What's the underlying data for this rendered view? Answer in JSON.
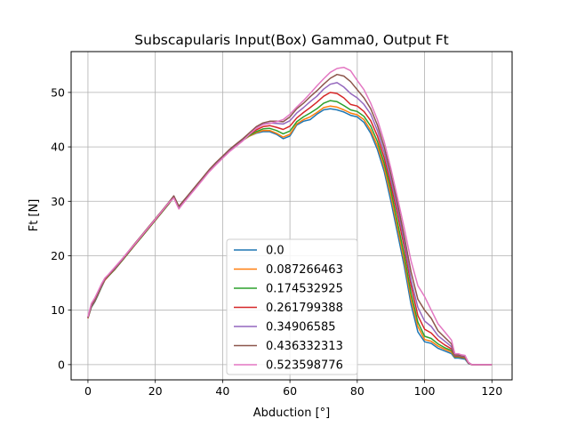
{
  "chart_data": {
    "type": "line",
    "title": "Subscapularis Input(Box) Gamma0, Output Ft",
    "xlabel": "Abduction [°]",
    "ylabel": "Ft [N]",
    "xlim": [
      -5,
      126
    ],
    "ylim": [
      -2.8,
      57.5
    ],
    "xticks": [
      0,
      20,
      40,
      60,
      80,
      100,
      120
    ],
    "yticks": [
      0,
      10,
      20,
      30,
      40,
      50
    ],
    "grid": true,
    "legend_position": "lower-center",
    "x": [
      0,
      1,
      2,
      3,
      4,
      5,
      6,
      8,
      10,
      12,
      14,
      16,
      18,
      20,
      22,
      24,
      25.5,
      27,
      28,
      30,
      32,
      34,
      36,
      38,
      40,
      42,
      44,
      46,
      48,
      50,
      52,
      54,
      56,
      58,
      60,
      62,
      64,
      66,
      68,
      70,
      72,
      74,
      76,
      78,
      80,
      82,
      84,
      86,
      88,
      90,
      92,
      94,
      96,
      98,
      100,
      102,
      104,
      106,
      108,
      109,
      110,
      111,
      112,
      113,
      114,
      116,
      118,
      120
    ],
    "series": [
      {
        "name": "0.0",
        "color": "#1f77b4",
        "values": [
          8.5,
          10.5,
          11.5,
          12.8,
          14.2,
          15.5,
          16.2,
          17.5,
          19.0,
          20.5,
          22.0,
          23.5,
          25.0,
          26.5,
          28.0,
          29.5,
          30.8,
          28.9,
          29.6,
          31.0,
          32.5,
          34.0,
          35.5,
          36.8,
          38.0,
          39.2,
          40.2,
          41.2,
          42.0,
          42.5,
          42.8,
          42.8,
          42.3,
          41.5,
          42.0,
          44.0,
          44.7,
          45.0,
          46.0,
          46.8,
          47.0,
          46.8,
          46.4,
          45.8,
          45.5,
          44.5,
          42.5,
          39.5,
          35.5,
          30.0,
          24.0,
          18.0,
          11.0,
          6.0,
          4.2,
          3.9,
          3.0,
          2.5,
          2.0,
          1.2,
          1.2,
          1.1,
          1.0,
          0.2,
          0.0,
          0.0,
          0.0,
          0.0
        ]
      },
      {
        "name": "0.087266463",
        "color": "#ff7f0e",
        "values": [
          8.5,
          10.6,
          11.6,
          12.9,
          14.3,
          15.5,
          16.2,
          17.5,
          19.0,
          20.5,
          22.0,
          23.5,
          25.0,
          26.5,
          28.0,
          29.5,
          30.8,
          28.9,
          29.6,
          31.0,
          32.5,
          34.0,
          35.5,
          36.8,
          38.0,
          39.2,
          40.2,
          41.2,
          42.0,
          42.6,
          43.0,
          43.0,
          42.5,
          41.8,
          42.3,
          44.2,
          45.0,
          45.5,
          46.3,
          47.2,
          47.5,
          47.3,
          46.8,
          46.2,
          45.9,
          45.0,
          43.0,
          40.2,
          36.2,
          31.0,
          25.0,
          19.0,
          12.0,
          7.0,
          4.6,
          4.3,
          3.4,
          2.8,
          2.3,
          1.4,
          1.4,
          1.3,
          1.2,
          0.3,
          0.0,
          0.0,
          0.0,
          0.0
        ]
      },
      {
        "name": "0.174532925",
        "color": "#2ca02c",
        "values": [
          8.6,
          10.6,
          11.6,
          12.9,
          14.3,
          15.6,
          16.2,
          17.5,
          19.0,
          20.5,
          22.0,
          23.5,
          25.0,
          26.5,
          28.0,
          29.5,
          30.8,
          28.9,
          29.6,
          31.0,
          32.5,
          34.0,
          35.5,
          36.8,
          38.0,
          39.2,
          40.2,
          41.2,
          42.1,
          42.8,
          43.3,
          43.4,
          43.0,
          42.4,
          42.9,
          44.6,
          45.5,
          46.2,
          47.0,
          48.0,
          48.5,
          48.3,
          47.6,
          46.8,
          46.5,
          45.6,
          43.8,
          41.0,
          37.0,
          32.0,
          26.0,
          20.0,
          13.0,
          7.8,
          5.2,
          4.8,
          3.8,
          3.1,
          2.6,
          1.5,
          1.5,
          1.4,
          1.3,
          0.3,
          0.0,
          0.0,
          0.0,
          0.0
        ]
      },
      {
        "name": "0.261799388",
        "color": "#d62728",
        "values": [
          8.6,
          10.7,
          11.7,
          13.0,
          14.4,
          15.6,
          16.3,
          17.6,
          19.1,
          20.6,
          22.1,
          23.6,
          25.1,
          26.6,
          28.1,
          29.6,
          30.9,
          29.0,
          29.7,
          31.1,
          32.6,
          34.1,
          35.6,
          36.9,
          38.1,
          39.3,
          40.3,
          41.3,
          42.3,
          43.1,
          43.7,
          43.9,
          43.6,
          43.2,
          43.8,
          45.3,
          46.3,
          47.2,
          48.2,
          49.3,
          50.0,
          49.8,
          49.0,
          47.8,
          47.5,
          46.5,
          44.8,
          42.0,
          38.0,
          33.0,
          27.5,
          21.5,
          14.5,
          9.0,
          6.5,
          5.8,
          4.5,
          3.6,
          2.9,
          1.6,
          1.6,
          1.5,
          1.4,
          0.3,
          0.0,
          0.0,
          0.0,
          0.0
        ]
      },
      {
        "name": "0.34906585",
        "color": "#9467bd",
        "values": [
          8.6,
          10.8,
          11.8,
          13.1,
          14.5,
          15.7,
          16.4,
          17.7,
          19.2,
          20.7,
          22.2,
          23.7,
          25.2,
          26.7,
          28.2,
          29.7,
          31.0,
          29.0,
          29.8,
          31.2,
          32.7,
          34.2,
          35.7,
          37.0,
          38.2,
          39.4,
          40.4,
          41.4,
          42.5,
          43.5,
          44.2,
          44.4,
          44.3,
          44.2,
          44.8,
          46.2,
          47.2,
          48.3,
          49.3,
          50.6,
          51.5,
          51.8,
          51.0,
          49.8,
          49.0,
          47.8,
          46.0,
          43.0,
          39.0,
          34.0,
          28.5,
          22.5,
          15.5,
          10.5,
          8.0,
          7.0,
          5.3,
          4.3,
          3.3,
          1.7,
          1.7,
          1.6,
          1.5,
          0.4,
          0.0,
          0.0,
          0.0,
          0.0
        ]
      },
      {
        "name": "0.436332313",
        "color": "#8c564b",
        "values": [
          8.7,
          10.9,
          11.9,
          13.2,
          14.6,
          15.8,
          16.4,
          17.8,
          19.3,
          20.8,
          22.3,
          23.8,
          25.3,
          26.8,
          28.3,
          29.8,
          31.0,
          29.1,
          29.8,
          31.3,
          32.8,
          34.3,
          35.8,
          37.1,
          38.3,
          39.5,
          40.5,
          41.5,
          42.6,
          43.7,
          44.4,
          44.7,
          44.7,
          44.6,
          45.5,
          47.0,
          48.0,
          49.2,
          50.3,
          51.5,
          52.6,
          53.3,
          53.0,
          52.0,
          50.5,
          49.0,
          47.0,
          44.0,
          40.0,
          35.0,
          29.5,
          23.5,
          17.0,
          12.0,
          10.0,
          8.5,
          6.2,
          5.0,
          3.8,
          1.8,
          1.8,
          1.7,
          1.6,
          0.4,
          0.0,
          0.0,
          0.0,
          0.0
        ]
      },
      {
        "name": "0.523598776",
        "color": "#e377c2",
        "values": [
          8.8,
          11.2,
          12.2,
          13.5,
          14.8,
          15.9,
          16.5,
          17.9,
          19.3,
          20.8,
          22.2,
          23.7,
          25.2,
          26.7,
          28.2,
          29.7,
          30.6,
          28.6,
          29.4,
          30.9,
          32.4,
          33.9,
          35.4,
          36.7,
          37.9,
          39.1,
          40.1,
          41.1,
          42.3,
          43.4,
          44.1,
          44.3,
          44.6,
          45.0,
          46.0,
          47.3,
          48.5,
          49.8,
          51.2,
          52.5,
          53.7,
          54.4,
          54.6,
          54.0,
          52.2,
          50.5,
          48.0,
          45.0,
          41.0,
          36.0,
          30.5,
          25.0,
          19.0,
          14.5,
          12.5,
          10.0,
          7.5,
          6.0,
          4.5,
          2.0,
          2.0,
          1.8,
          1.7,
          0.4,
          0.0,
          0.0,
          0.0,
          0.0
        ]
      }
    ]
  }
}
